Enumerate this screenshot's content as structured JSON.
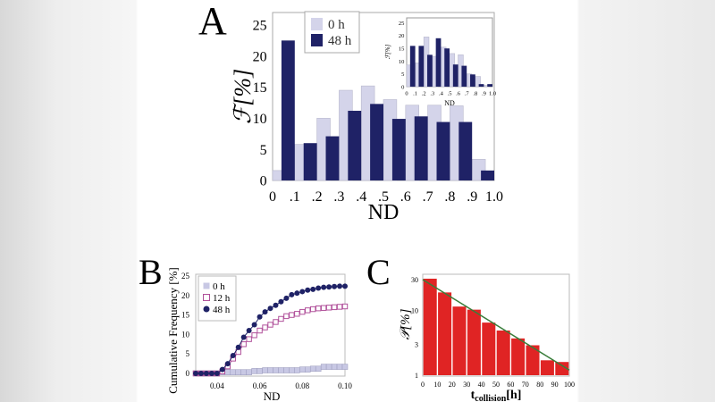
{
  "panels": {
    "a": "A",
    "b": "B",
    "c": "C"
  },
  "chart_data": [
    {
      "id": "A",
      "type": "bar",
      "xlabel": "ND",
      "ylabel": "ℱ[%]",
      "xticks": [
        "0",
        ".1",
        ".2",
        ".3",
        ".4",
        ".5",
        ".6",
        ".7",
        ".8",
        ".9",
        "1.0"
      ],
      "yticks": [
        0,
        5,
        10,
        15,
        20,
        25
      ],
      "xlim": [
        0,
        1.0
      ],
      "ylim": [
        0,
        27
      ],
      "legend": "top-left",
      "series": [
        {
          "name": "0 h",
          "color": "#d4d4ea",
          "values": [
            1.6,
            5.8,
            10.0,
            14.5,
            15.2,
            13.0,
            12.1,
            12.1,
            12.0,
            3.4
          ]
        },
        {
          "name": "48 h",
          "color": "#1f2266",
          "values": [
            22.5,
            6.0,
            7.1,
            11.2,
            12.3,
            9.9,
            10.3,
            9.4,
            9.4,
            1.6
          ]
        }
      ],
      "inset": {
        "type": "bar",
        "xlabel": "ND",
        "ylabel": "ℱ[%]",
        "xticks": [
          "0",
          ".1",
          ".2",
          ".3",
          ".4",
          ".5",
          ".6",
          ".7",
          ".8",
          ".9",
          "1.0"
        ],
        "yticks": [
          0,
          5,
          10,
          15,
          20,
          25
        ],
        "ylim": [
          0,
          27
        ],
        "series": [
          {
            "color": "#d4d4ea",
            "values": [
              8.5,
              9.3,
              19.5,
              11.9,
              15.5,
              13.0,
              12.5,
              5.0,
              4.0,
              0.5
            ]
          },
          {
            "color": "#1f2266",
            "values": [
              16.0,
              16.0,
              12.5,
              19.0,
              15.0,
              8.7,
              8.2,
              4.8,
              1.0,
              1.0
            ]
          }
        ]
      }
    },
    {
      "id": "B",
      "type": "line",
      "xlabel": "ND",
      "ylabel": "Cumulative Frequency [%]",
      "xticks": [
        "0.04",
        "0.06",
        "0.08",
        "0.10"
      ],
      "xtick_values": [
        0.04,
        0.06,
        0.08,
        0.1
      ],
      "yticks": [
        0,
        5,
        10,
        15,
        20,
        25
      ],
      "xlim": [
        0.03,
        0.1
      ],
      "ylim": [
        -0.5,
        25
      ],
      "legend": "top-left",
      "x": [
        0.03,
        0.0325,
        0.035,
        0.0375,
        0.04,
        0.0425,
        0.045,
        0.0475,
        0.05,
        0.0525,
        0.055,
        0.0575,
        0.06,
        0.0625,
        0.065,
        0.0675,
        0.07,
        0.0725,
        0.075,
        0.0775,
        0.08,
        0.0825,
        0.085,
        0.0875,
        0.09,
        0.0925,
        0.095,
        0.0975,
        0.1
      ],
      "series": [
        {
          "name": "0 h",
          "color": "#c8c8e4",
          "marker": "filled-square",
          "values": [
            0,
            0,
            0,
            0,
            0,
            0.3,
            0.3,
            0.3,
            0.3,
            0.3,
            0.3,
            0.6,
            0.6,
            0.8,
            0.8,
            0.8,
            0.8,
            0.8,
            0.8,
            0.8,
            1.0,
            1.0,
            1.2,
            1.2,
            1.7,
            1.7,
            1.7,
            1.7,
            1.7
          ]
        },
        {
          "name": "12 h",
          "color": "#b0509a",
          "marker": "open-square",
          "values": [
            0,
            0,
            0,
            0,
            0,
            0.5,
            1.8,
            3.8,
            5.5,
            7.5,
            8.8,
            9.8,
            11.0,
            11.8,
            12.5,
            13.2,
            14.0,
            14.7,
            15.0,
            15.3,
            15.8,
            16.2,
            16.5,
            16.7,
            16.8,
            16.9,
            17.0,
            17.1,
            17.2
          ]
        },
        {
          "name": "48 h",
          "color": "#1f2266",
          "marker": "filled-circle",
          "values": [
            0,
            0,
            0,
            0,
            0,
            1.0,
            2.5,
            4.6,
            6.7,
            9.3,
            11.0,
            12.5,
            14.5,
            15.8,
            16.7,
            17.5,
            18.4,
            19.3,
            20.2,
            20.6,
            21.0,
            21.4,
            21.6,
            21.9,
            22.1,
            22.2,
            22.3,
            22.4,
            22.4
          ]
        }
      ]
    },
    {
      "id": "C",
      "type": "bar",
      "xlabel": "t",
      "xlabel_sub": "collision",
      "xlabel_unit": "[h]",
      "ylabel": "𝒫[%]",
      "yscale": "log",
      "xticks": [
        "0",
        "10",
        "20",
        "30",
        "40",
        "50",
        "60",
        "70",
        "80",
        "90",
        "100"
      ],
      "yticks": [
        "1",
        "3",
        "10",
        "30"
      ],
      "ytick_values": [
        1,
        3,
        10,
        30
      ],
      "xlim": [
        0,
        100
      ],
      "ylim": [
        1,
        36
      ],
      "categories": [
        5,
        15,
        25,
        35,
        45,
        55,
        65,
        75,
        85,
        95
      ],
      "values": [
        31,
        19,
        11.5,
        10.3,
        6.5,
        4.9,
        3.7,
        2.9,
        1.7,
        1.6
      ],
      "bar_color": "#e02424",
      "fit_line": {
        "color": "#3a7d3a",
        "x": [
          0,
          100
        ],
        "y": [
          30,
          1.2
        ]
      }
    }
  ]
}
